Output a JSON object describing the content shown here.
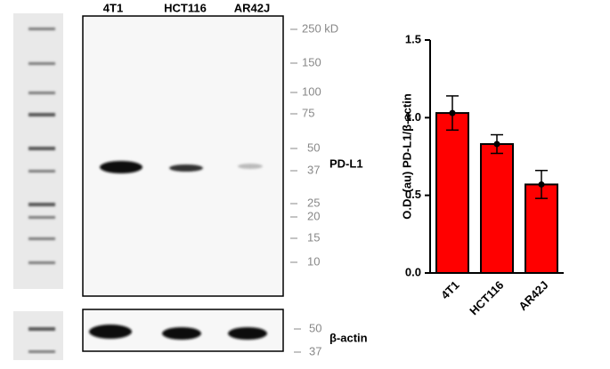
{
  "blot": {
    "lanes": [
      "4T1",
      "HCT116",
      "AR42J"
    ],
    "markers": [
      "250 kD",
      "150",
      "100",
      "75",
      "50",
      "37",
      "25",
      "20",
      "15",
      "10"
    ],
    "target": "PD-L1",
    "loading_markers": [
      "50",
      "37"
    ],
    "loading_control": "β-actin"
  },
  "chart_data": {
    "type": "bar",
    "ylabel": "O.D. (au) PD-L1/β-actin",
    "categories": [
      "4T1",
      "HCT116",
      "AR42J"
    ],
    "values": [
      1.03,
      0.83,
      0.57
    ],
    "errors": [
      0.11,
      0.06,
      0.09
    ],
    "color": "#ff0000",
    "ylim": [
      0,
      1.5
    ],
    "yticks": [
      {
        "value": 0,
        "label": "0.0"
      },
      {
        "value": 0.5,
        "label": "0.5"
      },
      {
        "value": 1,
        "label": "1.0"
      },
      {
        "value": 1.5,
        "label": "1.5"
      }
    ]
  }
}
